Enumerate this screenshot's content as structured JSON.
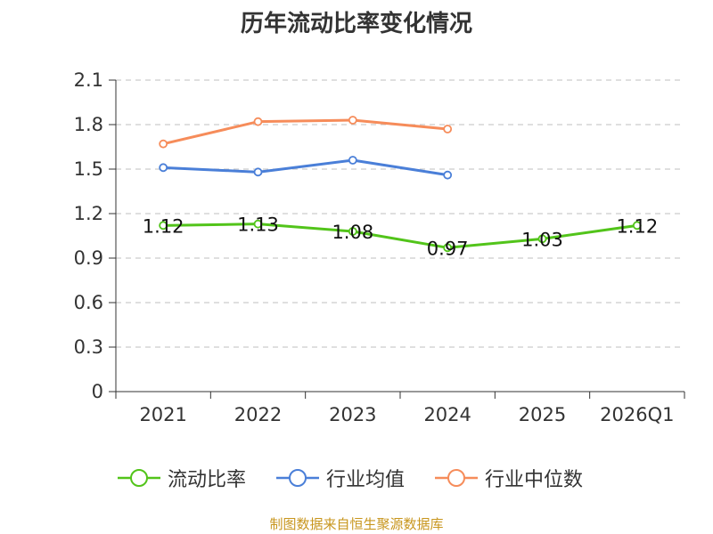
{
  "chart_data": {
    "type": "line",
    "title": "历年流动比率变化情况",
    "categories": [
      "2021",
      "2022",
      "2023",
      "2024",
      "2025",
      "2026Q1"
    ],
    "ylim": [
      0,
      2.1
    ],
    "yticks": [
      "0",
      "0.3",
      "0.6",
      "0.9",
      "1.2",
      "1.5",
      "1.8",
      "2.1"
    ],
    "grid": true,
    "legend_position": "bottom",
    "series": [
      {
        "name": "流动比率",
        "color": "#52c41a",
        "values": [
          1.12,
          1.13,
          1.08,
          0.97,
          1.03,
          1.12
        ],
        "labels": [
          "1.12",
          "1.13",
          "1.08",
          "0.97",
          "1.03",
          "1.12"
        ]
      },
      {
        "name": "行业均值",
        "color": "#4a7fd8",
        "values": [
          1.51,
          1.48,
          1.56,
          1.46,
          null,
          null
        ]
      },
      {
        "name": "行业中位数",
        "color": "#f68c5a",
        "values": [
          1.67,
          1.82,
          1.83,
          1.77,
          null,
          null
        ]
      }
    ]
  },
  "source_note": "制图数据来自恒生聚源数据库"
}
